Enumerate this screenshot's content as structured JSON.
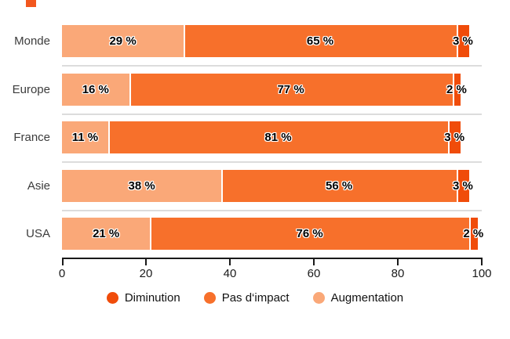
{
  "decoration": {
    "top_square_color": "#F2571E"
  },
  "chart_data": {
    "type": "bar",
    "orientation": "horizontal-stacked",
    "title": "",
    "categories": [
      "Monde",
      "Europe",
      "France",
      "Asie",
      "USA"
    ],
    "series": [
      {
        "name": "Augmentation",
        "color": "#FAA878",
        "values": [
          29,
          16,
          11,
          38,
          21
        ],
        "labels": [
          "29 %",
          "16 %",
          "11 %",
          "38 %",
          "21 %"
        ]
      },
      {
        "name": "Pas d‘impact",
        "color": "#F7702B",
        "values": [
          65,
          77,
          81,
          56,
          76
        ],
        "labels": [
          "65 %",
          "77 %",
          "81 %",
          "56 %",
          "76 %"
        ]
      },
      {
        "name": "Diminution",
        "color": "#F04C0A",
        "values": [
          3,
          2,
          3,
          3,
          2
        ],
        "labels": [
          "3 %",
          "2 %",
          "3 %",
          "3 %",
          "2 %"
        ]
      }
    ],
    "value_suffix": " %",
    "xlim": [
      0,
      100
    ],
    "x_ticks": [
      "0",
      "20",
      "40",
      "60",
      "80",
      "100"
    ],
    "grid": false,
    "row_separators": true,
    "legend_position": "bottom",
    "legend_order": [
      "Diminution",
      "Pas d‘impact",
      "Augmentation"
    ],
    "legend_colors": [
      "#F04C0A",
      "#F7702B",
      "#FAA878"
    ]
  }
}
